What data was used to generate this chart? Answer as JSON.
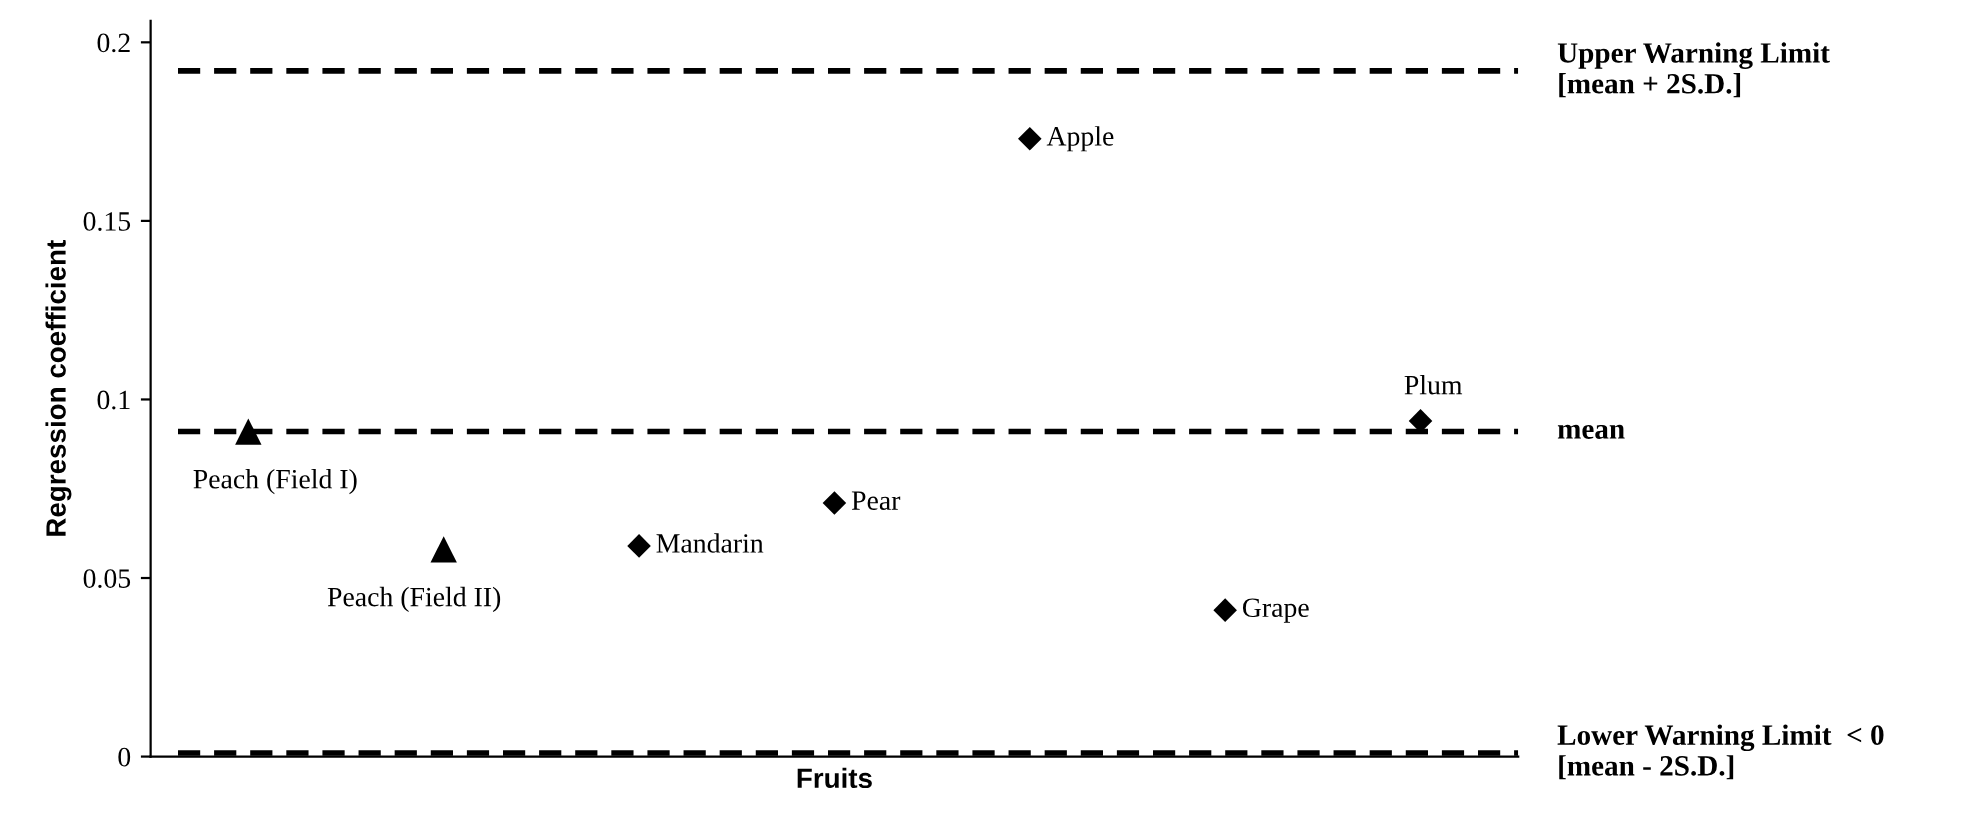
{
  "chart_data": {
    "type": "scatter",
    "xlabel": "Fruits",
    "ylabel": "Regression coefficient",
    "categories": [
      null,
      null,
      null,
      null,
      null,
      null,
      null
    ],
    "series": [
      {
        "color": "#000000",
        "marker": "triangle",
        "values": [
          0.091,
          0.058,
          null,
          null,
          null,
          null,
          null
        ],
        "value_labels": [
          "Peach (Field I)",
          "Peach (Field II)",
          null,
          null,
          null,
          null,
          null
        ]
      },
      {
        "color": "#000000",
        "marker": "diamond",
        "values": [
          null,
          null,
          0.059,
          0.071,
          0.173,
          0.041,
          0.094
        ],
        "value_labels": [
          null,
          null,
          "Mandarin",
          "Pear",
          "Apple",
          "Grape",
          "Plum"
        ]
      }
    ],
    "ylim": [
      0,
      0.206
    ],
    "yticks": [
      0,
      0.05,
      0.1,
      0.15,
      0.2
    ],
    "ref_lines": [
      {
        "axis": "y",
        "value": 0.192,
        "label": "Upper Warning Limit\n[mean + 2S.D.]",
        "line_style": "dashed",
        "color": "#000000"
      },
      {
        "axis": "y",
        "value": 0.091,
        "label": "mean",
        "line_style": "dashed",
        "color": "#000000"
      },
      {
        "axis": "y",
        "value": 0.001,
        "label": "Lower Warning Limit  < 0\n[mean - 2S.D.]",
        "line_style": "dashed",
        "color": "#000000"
      }
    ],
    "grid": false,
    "legend": false
  }
}
